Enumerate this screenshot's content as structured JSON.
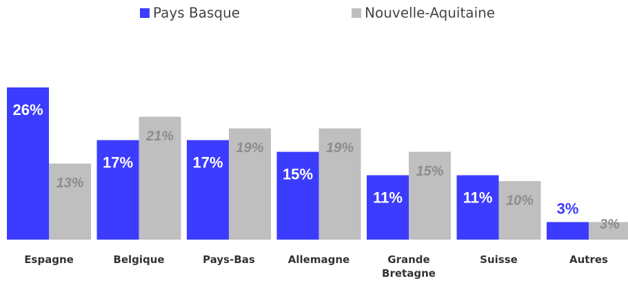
{
  "chart_data": {
    "type": "bar",
    "categories": [
      "Espagne",
      "Belgique",
      "Pays-Bas",
      "Allemagne",
      "Grande Bretagne",
      "Suisse",
      "Autres"
    ],
    "series": [
      {
        "name": "Pays Basque",
        "color": "#3c3cff",
        "values": [
          26,
          17,
          17,
          15,
          11,
          11,
          3
        ],
        "value_labels": [
          "26%",
          "17%",
          "17%",
          "15%",
          "11%",
          "11%",
          "3%"
        ]
      },
      {
        "name": "Nouvelle-Aquitaine",
        "color": "#bfbfbf",
        "values": [
          13,
          21,
          19,
          19,
          15,
          10,
          3
        ],
        "value_labels": [
          "13%",
          "21%",
          "19%",
          "19%",
          "15%",
          "10%",
          "3%"
        ]
      }
    ],
    "legend": "top"
  }
}
